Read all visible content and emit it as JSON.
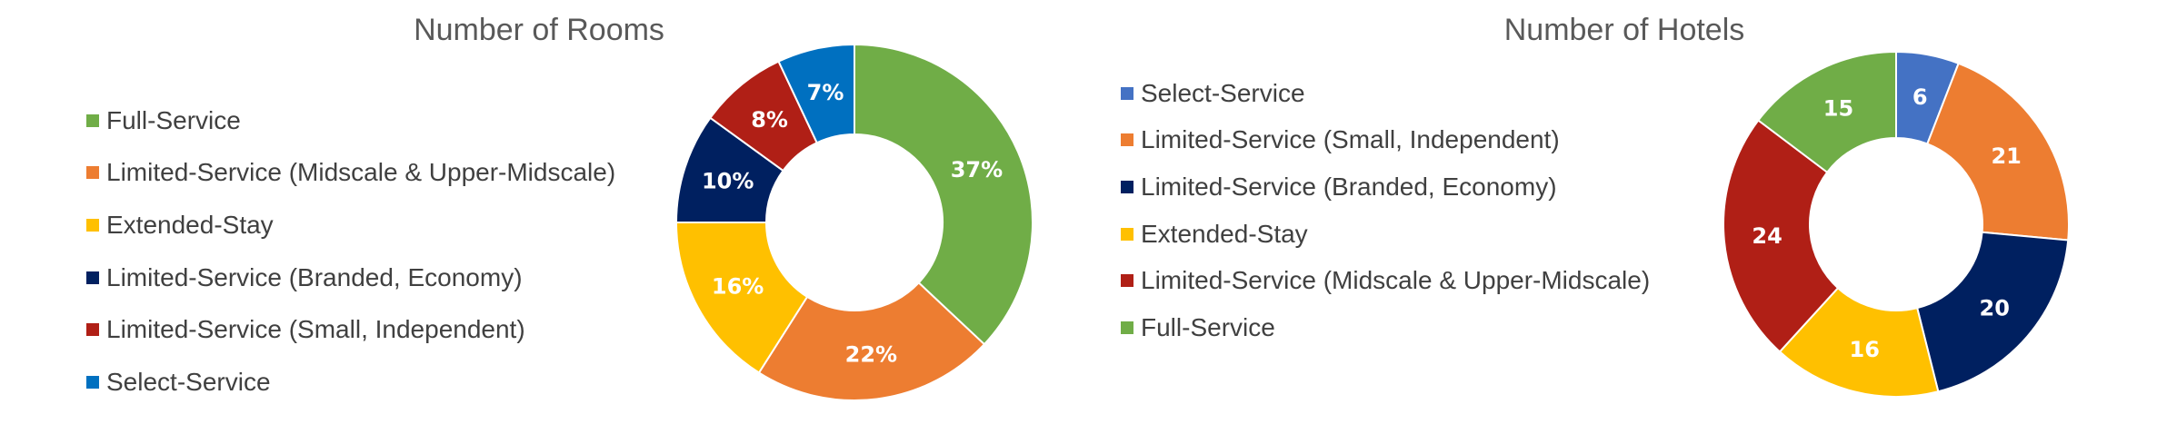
{
  "chart_data": [
    {
      "type": "pie",
      "title": "Number of Rooms",
      "categories": [
        "Full-Service",
        "Limited-Service (Midscale & Upper-Midscale)",
        "Extended-Stay",
        "Limited-Service (Branded, Economy)",
        "Limited-Service (Small, Independent)",
        "Select-Service"
      ],
      "values": [
        37,
        22,
        16,
        10,
        8,
        7
      ],
      "labels": [
        "37%",
        "22%",
        "16%",
        "10%",
        "8%",
        "7%"
      ],
      "colors": [
        "#70AD47",
        "#ED7D31",
        "#FFC000",
        "#002060",
        "#B01F16",
        "#0070C0"
      ],
      "legend": "left"
    },
    {
      "type": "pie",
      "title": "Number of Hotels",
      "categories": [
        "Select-Service",
        "Limited-Service (Small, Independent)",
        "Limited-Service (Branded, Economy)",
        "Extended-Stay",
        "Limited-Service (Midscale & Upper-Midscale)",
        "Full-Service"
      ],
      "values": [
        6,
        21,
        20,
        16,
        24,
        15
      ],
      "labels": [
        "6",
        "21",
        "20",
        "16",
        "24",
        "15"
      ],
      "colors": [
        "#4472C4",
        "#ED7D31",
        "#002060",
        "#FFC000",
        "#B01F16",
        "#70AD47"
      ],
      "legend": "left"
    }
  ]
}
